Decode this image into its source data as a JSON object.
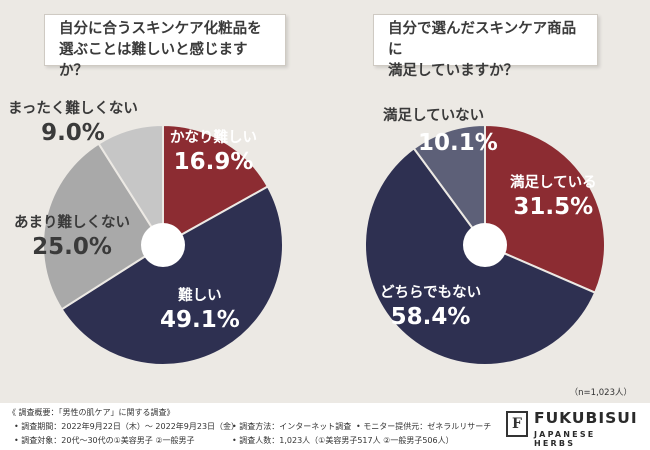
{
  "chart_data": [
    {
      "type": "pie",
      "title": "自分に合うスキンケア化粧品を選ぶことは難しいと感じますか？",
      "title_lines": [
        "自分に合うスキンケア化粧品を",
        "選ぶことは難しいと感じますか？"
      ],
      "slices": [
        {
          "label": "かなり難しい",
          "value": 16.9,
          "pct_text": "16.9%",
          "color": "#8c2c32"
        },
        {
          "label": "難しい",
          "value": 49.1,
          "pct_text": "49.1%",
          "color": "#2e3051"
        },
        {
          "label": "あまり難しくない",
          "value": 25.0,
          "pct_text": "25.0%",
          "color": "#a9a9a9"
        },
        {
          "label": "まったく難しくない",
          "value": 9.0,
          "pct_text": "9.0%",
          "color": "#c6c6c6"
        }
      ]
    },
    {
      "type": "pie",
      "title": "自分で選んだスキンケア商品に満足していますか？",
      "title_lines": [
        "自分で選んだスキンケア商品に",
        "満足していますか？"
      ],
      "slices": [
        {
          "label": "満足している",
          "value": 31.5,
          "pct_text": "31.5%",
          "color": "#8c2c32"
        },
        {
          "label": "どちらでもない",
          "value": 58.4,
          "pct_text": "58.4%",
          "color": "#2e3051"
        },
        {
          "label": "満足していない",
          "value": 10.1,
          "pct_text": "10.1%",
          "color": "#5d6078"
        }
      ]
    }
  ],
  "sample_note": "（n=1,023人）",
  "survey": {
    "overview": "《 調査概要：「男性の肌ケア」に関する調査》",
    "period": "• 調査期間：2022年9月22日（木）～ 2022年9月23日（金）",
    "method": "• 調査方法：インターネット調査",
    "provider": "• モニター提供元：ゼネラルリサーチ",
    "target": "• 調査対象：20代～30代の①美容男子 ②一般男子",
    "count": "• 調査人数：1,023人（①美容男子517人 ②一般男子506人）"
  },
  "brand": {
    "mark": "F",
    "name": "FUKUBISUI",
    "sub": "JAPANESE HERBS"
  }
}
